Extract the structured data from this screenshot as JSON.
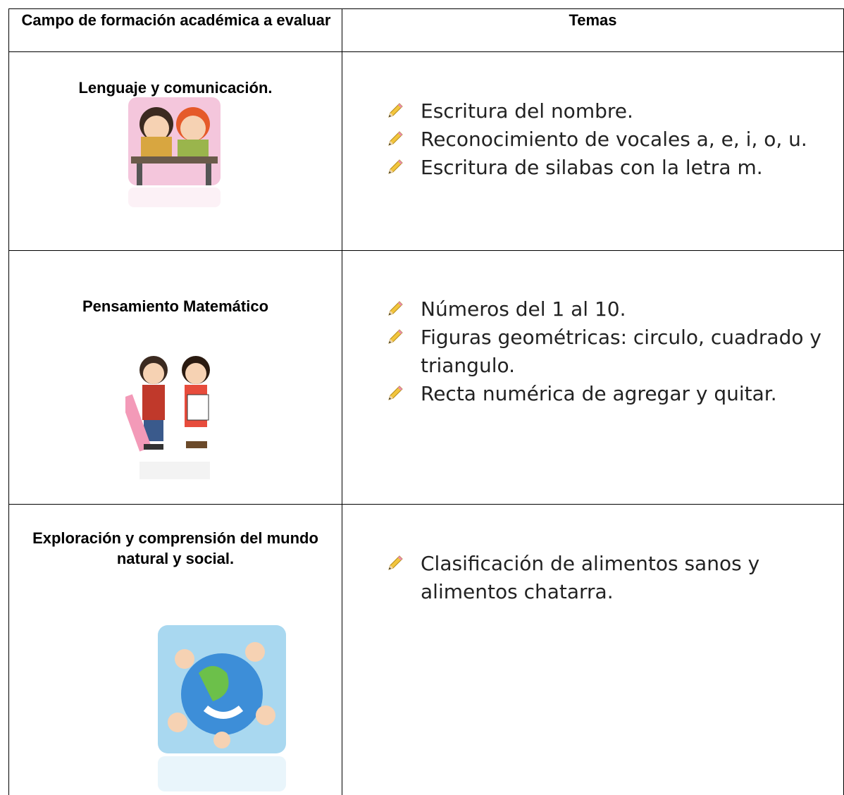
{
  "table": {
    "header": [
      "Campo de formación académica a evaluar",
      "Temas"
    ],
    "rows": [
      {
        "field": "Lenguaje y comunicación.",
        "topics": [
          "Escritura del nombre.",
          "Reconocimiento de vocales a, e, i, o, u.",
          "Escritura de silabas con la letra m."
        ]
      },
      {
        "field": "Pensamiento Matemático",
        "topics": [
          "Números del 1 al 10.",
          "Figuras geométricas: circulo, cuadrado y triangulo.",
          "Recta numérica de agregar y quitar."
        ]
      },
      {
        "field": "Exploración y comprensión del mundo natural y social.",
        "topics": [
          "Clasificación de alimentos sanos y alimentos chatarra."
        ]
      }
    ]
  }
}
